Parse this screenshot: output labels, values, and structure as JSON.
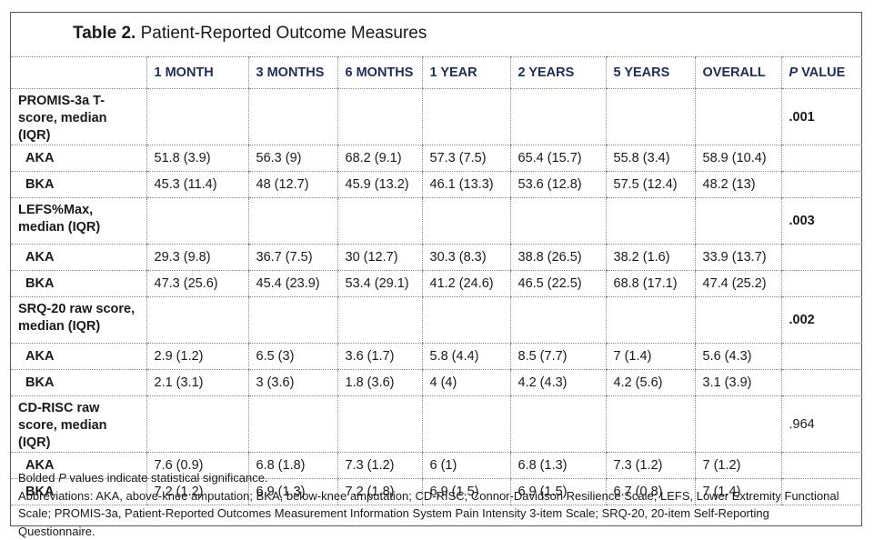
{
  "title": {
    "label": "Table 2.",
    "text": "Patient-Reported Outcome Measures"
  },
  "header": {
    "columns": [
      "1 MONTH",
      "3 MONTHS",
      "6 MONTHS",
      "1 YEAR",
      "2 YEARS",
      "5 YEARS",
      "OVERALL"
    ],
    "p_value": {
      "italic": "P",
      "rest": " VALUE"
    }
  },
  "sections": [
    {
      "label": "PROMIS-3a T-score, median (IQR)",
      "p_value": ".001",
      "bold_p": true,
      "rows": [
        {
          "label": "AKA",
          "values": [
            "51.8 (3.9)",
            "56.3 (9)",
            "68.2 (9.1)",
            "57.3 (7.5)",
            "65.4 (15.7)",
            "55.8 (3.4)",
            "58.9 (10.4)"
          ]
        },
        {
          "label": "BKA",
          "values": [
            "45.3 (11.4)",
            "48 (12.7)",
            "45.9 (13.2)",
            "46.1 (13.3)",
            "53.6 (12.8)",
            "57.5 (12.4)",
            "48.2 (13)"
          ]
        }
      ]
    },
    {
      "label": "LEFS%Max, median (IQR)",
      "p_value": ".003",
      "bold_p": true,
      "rows": [
        {
          "label": "AKA",
          "values": [
            "29.3 (9.8)",
            "36.7 (7.5)",
            "30 (12.7)",
            "30.3 (8.3)",
            "38.8 (26.5)",
            "38.2 (1.6)",
            "33.9 (13.7)"
          ]
        },
        {
          "label": "BKA",
          "values": [
            "47.3 (25.6)",
            "45.4 (23.9)",
            "53.4 (29.1)",
            "41.2 (24.6)",
            "46.5 (22.5)",
            "68.8 (17.1)",
            "47.4 (25.2)"
          ]
        }
      ]
    },
    {
      "label": "SRQ-20 raw score, median (IQR)",
      "p_value": ".002",
      "bold_p": true,
      "rows": [
        {
          "label": "AKA",
          "values": [
            "2.9 (1.2)",
            "6.5 (3)",
            "3.6 (1.7)",
            "5.8 (4.4)",
            "8.5 (7.7)",
            "7 (1.4)",
            "5.6 (4.3)"
          ]
        },
        {
          "label": "BKA",
          "values": [
            "2.1 (3.1)",
            "3 (3.6)",
            "1.8 (3.6)",
            "4 (4)",
            "4.2 (4.3)",
            "4.2 (5.6)",
            "3.1 (3.9)"
          ]
        }
      ]
    },
    {
      "label": "CD-RISC raw score, median (IQR)",
      "p_value": ".964",
      "bold_p": false,
      "rows": [
        {
          "label": "AKA",
          "values": [
            "7.6 (0.9)",
            "6.8 (1.8)",
            "7.3 (1.2)",
            "6 (1)",
            "6.8 (1.3)",
            "7.3 (1.2)",
            "7 (1.2)"
          ]
        },
        {
          "label": "BKA",
          "values": [
            "7.2 (1.2)",
            "6.9 (1.3)",
            "7.2 (1.8)",
            "6.9 (1.5)",
            "6.9 (1.5)",
            "6.7 (0.8)",
            "7 (1.4)"
          ]
        }
      ]
    }
  ],
  "footnotes": {
    "significance": {
      "before": "Bolded ",
      "italic": "P",
      "after": " values indicate statistical significance."
    },
    "abbreviations": "Abbreviations: AKA, above-knee amputation; BKA, below-knee amputation; CD-RISC, Connor-Davidson Resilience Scale; LEFS, Lower Extremity Functional Scale; PROMIS-3a, Patient-Reported Outcomes Measurement Information System Pain Intensity 3-item Scale; SRQ-20, 20-item Self-Reporting Questionnaire."
  }
}
